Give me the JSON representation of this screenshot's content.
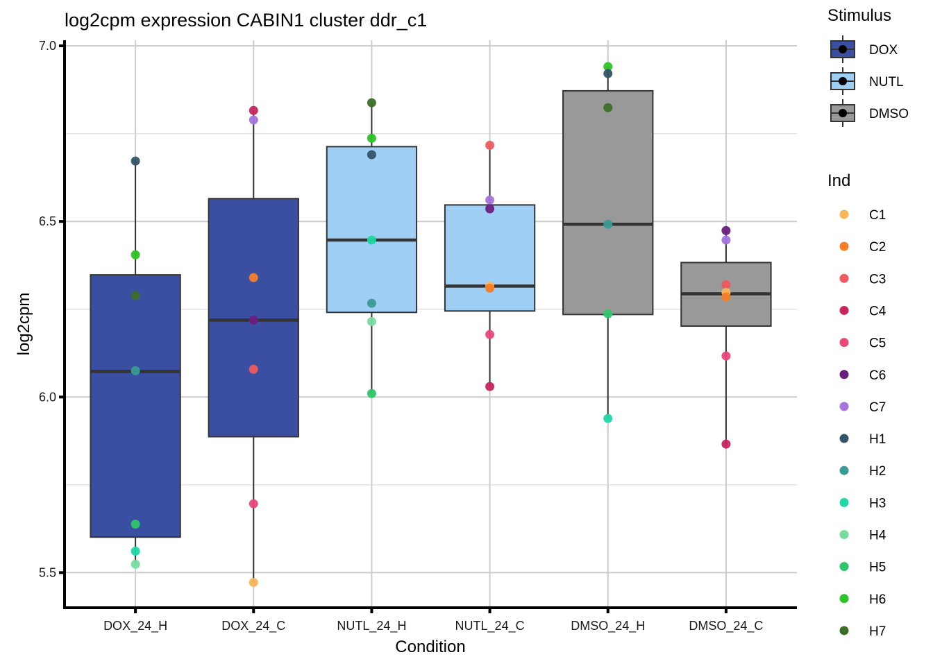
{
  "chart_data": {
    "type": "boxplot",
    "title": "log2cpm expression CABIN1 cluster ddr_c1",
    "xlabel": "Condition",
    "ylabel": "log2cpm",
    "ylim": [
      5.4,
      7.016
    ],
    "yticks": [
      5.5,
      6.0,
      6.5,
      7.0
    ],
    "ytick_labels": [
      "5.5",
      "6.0",
      "6.5",
      "7.0"
    ],
    "grid": true,
    "categories": [
      "DOX_24_H",
      "DOX_24_C",
      "NUTL_24_H",
      "NUTL_24_C",
      "DMSO_24_H",
      "DMSO_24_C"
    ],
    "boxes": [
      {
        "condition": "DOX_24_H",
        "stimulus": "DOX",
        "q1": 5.601,
        "median": 6.073,
        "q3": 6.348,
        "whisker_low": 5.524,
        "whisker_high": 6.672
      },
      {
        "condition": "DOX_24_C",
        "stimulus": "DOX",
        "q1": 5.887,
        "median": 6.219,
        "q3": 6.565,
        "whisker_low": 5.472,
        "whisker_high": 6.816
      },
      {
        "condition": "NUTL_24_H",
        "stimulus": "NUTL",
        "q1": 6.241,
        "median": 6.447,
        "q3": 6.713,
        "whisker_low": 6.01,
        "whisker_high": 6.838
      },
      {
        "condition": "NUTL_24_C",
        "stimulus": "NUTL",
        "q1": 6.245,
        "median": 6.316,
        "q3": 6.547,
        "whisker_low": 6.03,
        "whisker_high": 6.717
      },
      {
        "condition": "DMSO_24_H",
        "stimulus": "DMSO",
        "q1": 6.235,
        "median": 6.492,
        "q3": 6.872,
        "whisker_low": 5.939,
        "whisker_high": 6.941
      },
      {
        "condition": "DMSO_24_C",
        "stimulus": "DMSO",
        "q1": 6.202,
        "median": 6.294,
        "q3": 6.383,
        "whisker_low": 5.866,
        "whisker_high": 6.474
      }
    ],
    "points": [
      {
        "condition": "DOX_24_H",
        "ind": "H1",
        "value": 6.672
      },
      {
        "condition": "DOX_24_H",
        "ind": "H6",
        "value": 6.405
      },
      {
        "condition": "DOX_24_H",
        "ind": "H7",
        "value": 6.289
      },
      {
        "condition": "DOX_24_H",
        "ind": "H2",
        "value": 6.075
      },
      {
        "condition": "DOX_24_H",
        "ind": "H5",
        "value": 5.638
      },
      {
        "condition": "DOX_24_H",
        "ind": "H3",
        "value": 5.561
      },
      {
        "condition": "DOX_24_H",
        "ind": "H4",
        "value": 5.524
      },
      {
        "condition": "DOX_24_C",
        "ind": "C4",
        "value": 6.816
      },
      {
        "condition": "DOX_24_C",
        "ind": "C7",
        "value": 6.789
      },
      {
        "condition": "DOX_24_C",
        "ind": "C2",
        "value": 6.34
      },
      {
        "condition": "DOX_24_C",
        "ind": "C6",
        "value": 6.219
      },
      {
        "condition": "DOX_24_C",
        "ind": "C3",
        "value": 6.079
      },
      {
        "condition": "DOX_24_C",
        "ind": "C5",
        "value": 5.696
      },
      {
        "condition": "DOX_24_C",
        "ind": "C1",
        "value": 5.472
      },
      {
        "condition": "NUTL_24_H",
        "ind": "H7",
        "value": 6.838
      },
      {
        "condition": "NUTL_24_H",
        "ind": "H6",
        "value": 6.737
      },
      {
        "condition": "NUTL_24_H",
        "ind": "H1",
        "value": 6.69
      },
      {
        "condition": "NUTL_24_H",
        "ind": "H3",
        "value": 6.447
      },
      {
        "condition": "NUTL_24_H",
        "ind": "H2",
        "value": 6.267
      },
      {
        "condition": "NUTL_24_H",
        "ind": "H4",
        "value": 6.215
      },
      {
        "condition": "NUTL_24_H",
        "ind": "H5",
        "value": 6.01
      },
      {
        "condition": "NUTL_24_C",
        "ind": "C3",
        "value": 6.717
      },
      {
        "condition": "NUTL_24_C",
        "ind": "C7",
        "value": 6.561
      },
      {
        "condition": "NUTL_24_C",
        "ind": "C6",
        "value": 6.536
      },
      {
        "condition": "NUTL_24_C",
        "ind": "C1",
        "value": 6.316
      },
      {
        "condition": "NUTL_24_C",
        "ind": "C2",
        "value": 6.31
      },
      {
        "condition": "NUTL_24_C",
        "ind": "C5",
        "value": 6.178
      },
      {
        "condition": "NUTL_24_C",
        "ind": "C4",
        "value": 6.03
      },
      {
        "condition": "DMSO_24_H",
        "ind": "H6",
        "value": 6.941
      },
      {
        "condition": "DMSO_24_H",
        "ind": "H1",
        "value": 6.921
      },
      {
        "condition": "DMSO_24_H",
        "ind": "H7",
        "value": 6.824
      },
      {
        "condition": "DMSO_24_H",
        "ind": "H2",
        "value": 6.492
      },
      {
        "condition": "DMSO_24_H",
        "ind": "H5",
        "value": 6.237
      },
      {
        "condition": "DMSO_24_H",
        "ind": "H3",
        "value": 5.939
      },
      {
        "condition": "DMSO_24_C",
        "ind": "C6",
        "value": 6.474
      },
      {
        "condition": "DMSO_24_C",
        "ind": "C7",
        "value": 6.447
      },
      {
        "condition": "DMSO_24_C",
        "ind": "C3",
        "value": 6.32
      },
      {
        "condition": "DMSO_24_C",
        "ind": "C1",
        "value": 6.298
      },
      {
        "condition": "DMSO_24_C",
        "ind": "C2",
        "value": 6.285
      },
      {
        "condition": "DMSO_24_C",
        "ind": "C5",
        "value": 6.117
      },
      {
        "condition": "DMSO_24_C",
        "ind": "C4",
        "value": 5.866
      }
    ],
    "legends": [
      {
        "title": "Stimulus",
        "kind": "box",
        "position": "top-right",
        "entries": [
          {
            "label": "DOX",
            "color": "#3A4FA2"
          },
          {
            "label": "NUTL",
            "color": "#A0CFF6"
          },
          {
            "label": "DMSO",
            "color": "#999999"
          }
        ]
      },
      {
        "title": "Ind",
        "kind": "point",
        "position": "right",
        "entries": [
          {
            "label": "C1",
            "color": "#FBB45A"
          },
          {
            "label": "C2",
            "color": "#F47D2A"
          },
          {
            "label": "C3",
            "color": "#EE5A5F"
          },
          {
            "label": "C4",
            "color": "#C9245E"
          },
          {
            "label": "C5",
            "color": "#EA4779"
          },
          {
            "label": "C6",
            "color": "#6A1F7E"
          },
          {
            "label": "C7",
            "color": "#A574DD"
          },
          {
            "label": "H1",
            "color": "#345467"
          },
          {
            "label": "H2",
            "color": "#3A9C92"
          },
          {
            "label": "H3",
            "color": "#1ED8A5"
          },
          {
            "label": "H4",
            "color": "#77DC9D"
          },
          {
            "label": "H5",
            "color": "#2EC66C"
          },
          {
            "label": "H6",
            "color": "#2BC325"
          },
          {
            "label": "H7",
            "color": "#3D6E27"
          }
        ]
      }
    ]
  }
}
